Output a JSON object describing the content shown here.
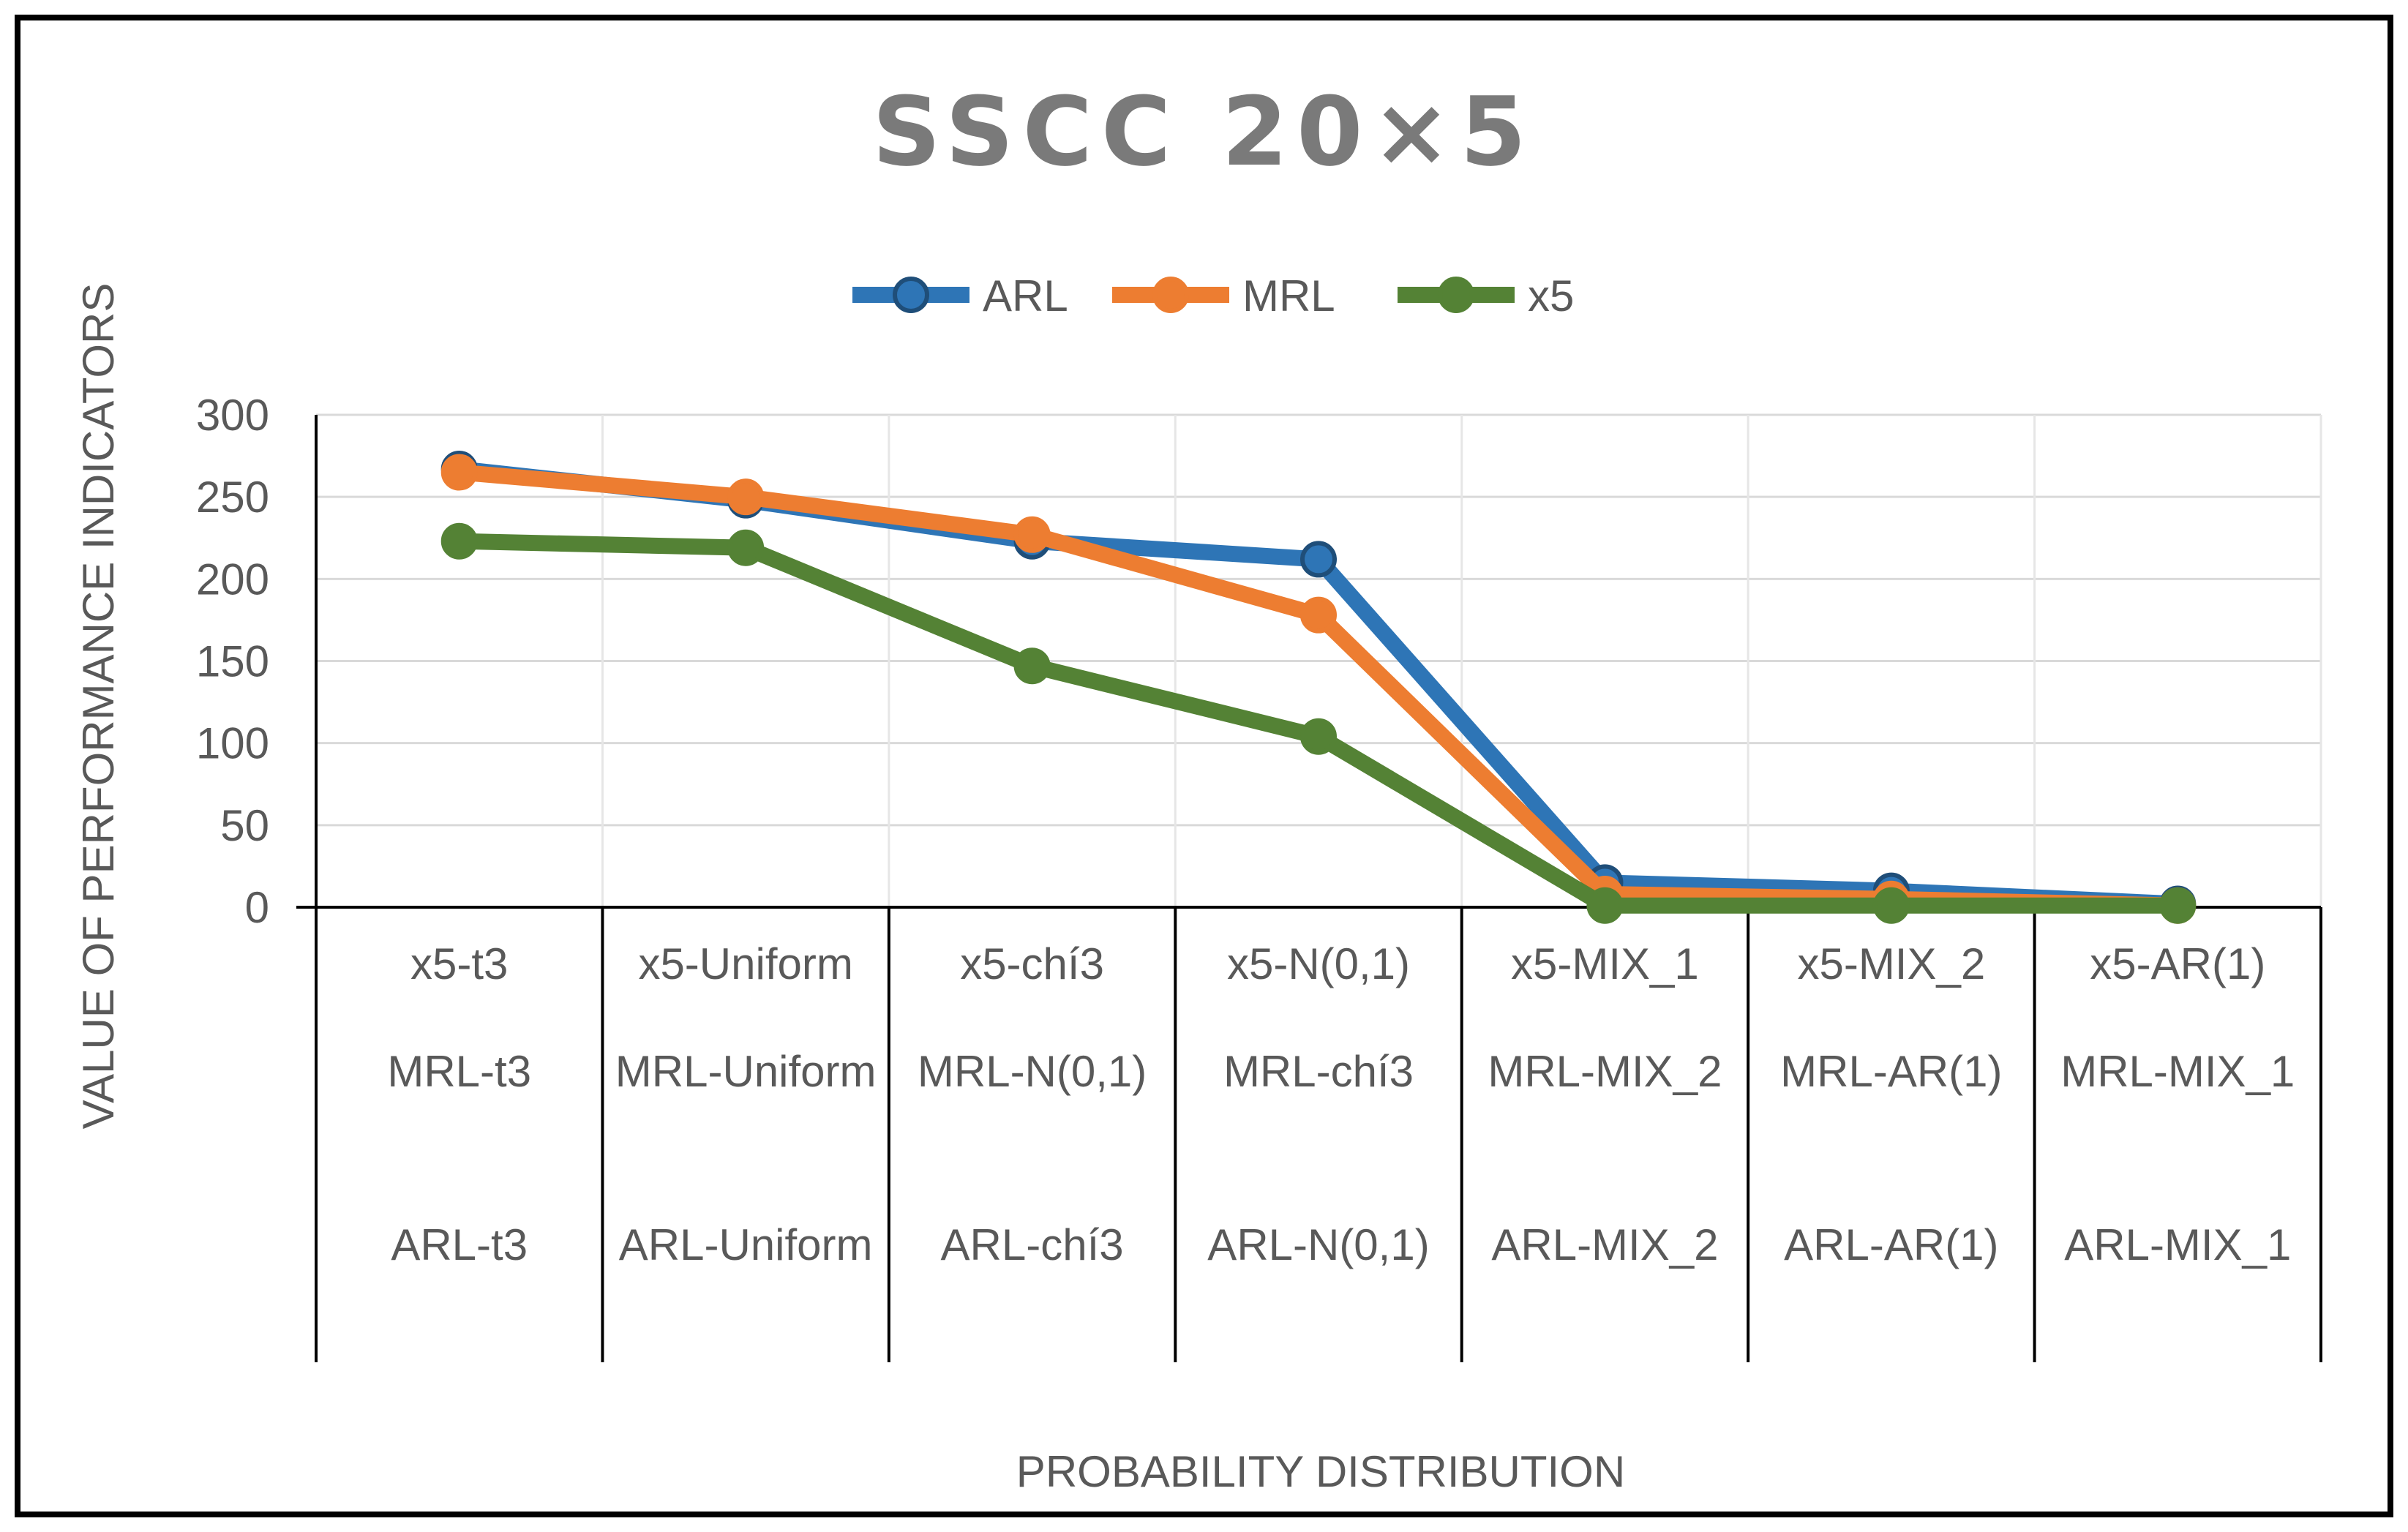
{
  "chart_data": {
    "type": "line",
    "title": "SSCC 20×5",
    "xlabel": "PROBABILITY DISTRIBUTION",
    "ylabel": "VALUE OF PERFORMANCE INDICATORS",
    "ylim": [
      0,
      300
    ],
    "yticks": [
      0,
      50,
      100,
      150,
      200,
      250,
      300
    ],
    "grid": true,
    "legend_position": "top-center",
    "category_rows": [
      [
        "x5-t3",
        "x5-Uniform",
        "x5-chí3",
        "x5-N(0,1)",
        "x5-MIX_1",
        "x5-MIX_2",
        "x5-AR(1)"
      ],
      [
        "MRL-t3",
        "MRL-Uniform",
        "MRL-N(0,1)",
        "MRL-chí3",
        "MRL-MIX_2",
        "MRL-AR(1)",
        "MRL-MIX_1"
      ],
      [
        "ARL-t3",
        "ARL-Uniform",
        "ARL-chí3",
        "ARL-N(0,1)",
        "ARL-MIX_2",
        "ARL-AR(1)",
        "ARL-MIX_1"
      ]
    ],
    "series": [
      {
        "name": "ARL",
        "color": "#2e75b6",
        "values": [
          267,
          248,
          223,
          212,
          15,
          10,
          2
        ]
      },
      {
        "name": "MRL",
        "color": "#ed7d31",
        "values": [
          265,
          250,
          227,
          178,
          8,
          5,
          1
        ]
      },
      {
        "name": "x5",
        "color": "#548235",
        "values": [
          223,
          219,
          147,
          104,
          1,
          1,
          1
        ]
      }
    ]
  }
}
